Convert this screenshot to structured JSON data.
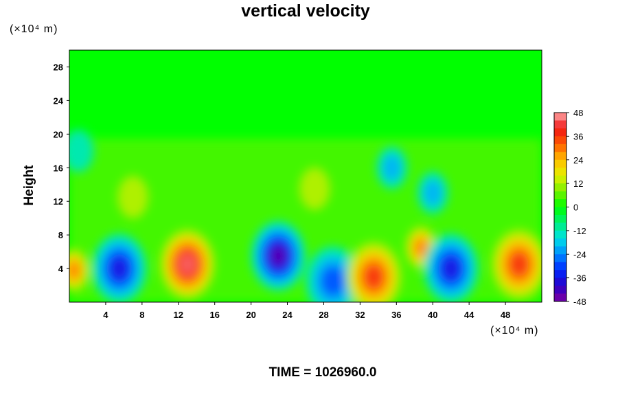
{
  "chart_data": {
    "type": "heatmap",
    "title": "vertical velocity",
    "ylabel": "Height",
    "y_unit": "(×10⁴ m)",
    "x_unit": "(×10⁴ m)",
    "footer": "TIME = 1026960.0",
    "xlim": [
      0,
      52
    ],
    "ylim": [
      0,
      30
    ],
    "x_ticks": [
      4,
      8,
      12,
      16,
      20,
      24,
      28,
      32,
      36,
      40,
      44,
      48
    ],
    "y_ticks": [
      4,
      8,
      12,
      16,
      20,
      24,
      28
    ],
    "colorbar": {
      "range": [
        -48,
        48
      ],
      "ticks": [
        48,
        36,
        24,
        12,
        0,
        -12,
        -24,
        -36,
        -48
      ]
    },
    "grid": false,
    "regions": [
      {
        "x": 0.5,
        "y": 3.8,
        "value": 28,
        "description": "updraft at left edge"
      },
      {
        "x": 5.5,
        "y": 4.0,
        "value": -40,
        "description": "downdraft core"
      },
      {
        "x": 13.0,
        "y": 4.5,
        "value": 48,
        "description": "strong updraft core"
      },
      {
        "x": 23.0,
        "y": 5.5,
        "value": -48,
        "description": "strong downdraft, slanted"
      },
      {
        "x": 29.0,
        "y": 2.5,
        "value": -35,
        "description": "downdraft"
      },
      {
        "x": 33.5,
        "y": 3.0,
        "value": 38,
        "description": "updraft"
      },
      {
        "x": 38.7,
        "y": 6.5,
        "value": 28,
        "description": "small updraft"
      },
      {
        "x": 42.0,
        "y": 4.0,
        "value": -42,
        "description": "downdraft"
      },
      {
        "x": 49.5,
        "y": 4.5,
        "value": 40,
        "description": "updraft at right edge"
      },
      {
        "x": 7.0,
        "y": 12.5,
        "value": 15,
        "description": "weak updraft streak"
      },
      {
        "x": 27.0,
        "y": 13.5,
        "value": 15,
        "description": "weak updraft"
      },
      {
        "x": 35.5,
        "y": 16.0,
        "value": -22,
        "description": "weak downdraft aloft"
      },
      {
        "x": 40.0,
        "y": 13.0,
        "value": -26,
        "description": "weak downdraft aloft"
      },
      {
        "x": 1.0,
        "y": 18.0,
        "value": -18,
        "description": "weak downdraft near tropopause"
      }
    ]
  }
}
